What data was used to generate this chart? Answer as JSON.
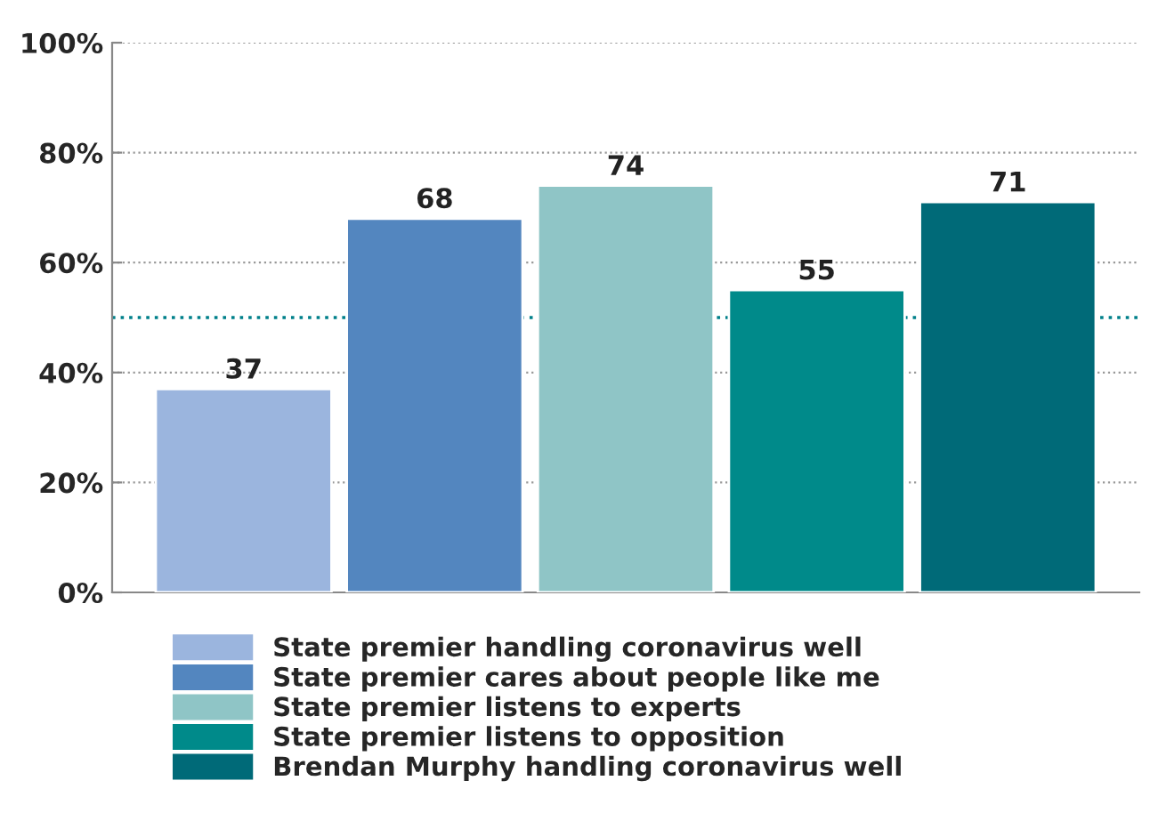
{
  "chart_data": {
    "type": "bar",
    "categories": [
      null
    ],
    "series": [
      {
        "name": "State premier handling coronavirus well",
        "color": "#9bb5de",
        "values": [
          37
        ]
      },
      {
        "name": "State premier cares about people like me",
        "color": "#5386bf",
        "values": [
          68
        ]
      },
      {
        "name": "State premier listens to experts",
        "color": "#8fc5c6",
        "values": [
          74
        ]
      },
      {
        "name": "State premier listens to opposition",
        "color": "#008a8a",
        "values": [
          55
        ]
      },
      {
        "name": "Brendan Murphy handling coronavirus well",
        "color": "#006a78",
        "values": [
          71
        ]
      }
    ],
    "ylim": [
      0,
      100
    ],
    "yticks": [
      {
        "value": 0,
        "label": "0%"
      },
      {
        "value": 20,
        "label": "20%"
      },
      {
        "value": 40,
        "label": "40%"
      },
      {
        "value": 60,
        "label": "60%"
      },
      {
        "value": 80,
        "label": "80%"
      },
      {
        "value": 100,
        "label": "100%"
      }
    ],
    "grid": "y",
    "ref_lines": [
      {
        "axis": "y",
        "value": 50,
        "color": "#00808a",
        "line_style": "dotted"
      }
    ],
    "data_labels": true,
    "legend": "bottom"
  }
}
